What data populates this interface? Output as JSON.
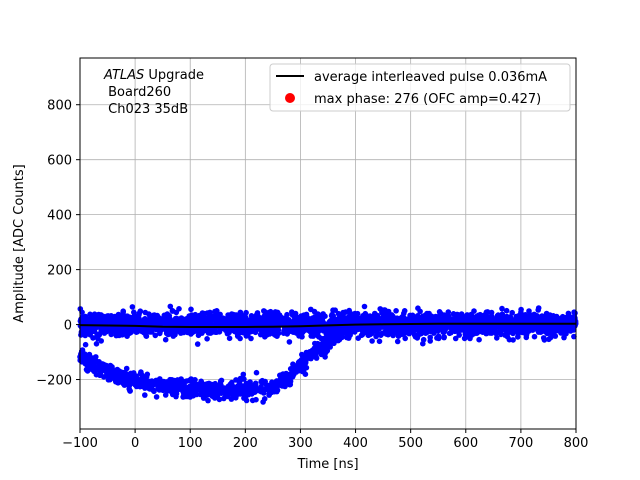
{
  "chart_data": {
    "type": "scatter",
    "title": "",
    "xlabel": "Time [ns]",
    "ylabel": "Amplitude [ADC Counts]",
    "xlim": [
      -100,
      800
    ],
    "ylim": [
      -380,
      970
    ],
    "xticks": [
      -100,
      0,
      100,
      200,
      300,
      400,
      500,
      600,
      700,
      800
    ],
    "yticks": [
      -200,
      0,
      200,
      400,
      600,
      800
    ],
    "grid": true,
    "legend_position": "top-right",
    "annotation": {
      "italic": "ATLAS",
      "line1_rest": " Upgrade",
      "line2": " Board260",
      "line3": " Ch023 35dB"
    },
    "series": [
      {
        "name": "average interleaved pulse 0.036mA",
        "kind": "line",
        "color": "#000000",
        "x": [
          -100,
          0,
          50,
          100,
          150,
          200,
          250,
          300,
          350,
          400,
          450,
          500,
          550,
          600,
          650,
          700,
          750,
          800
        ],
        "y": [
          -2,
          -5,
          -8,
          -9,
          -9,
          -9,
          -8,
          -6,
          -3,
          0,
          1,
          2,
          3,
          3,
          3,
          3,
          3,
          3
        ]
      },
      {
        "name": "max phase: 276 (OFC amp=0.427)",
        "kind": "points",
        "color": "#ff0000",
        "x": [],
        "y": []
      },
      {
        "name": "",
        "kind": "scatter",
        "color": "#0000ff",
        "band": {
          "x_start": -100,
          "x_end": 800,
          "center": 0,
          "spread": 30
        },
        "pulse": {
          "x": [
            -100,
            -75,
            -50,
            -25,
            0,
            25,
            50,
            75,
            100,
            125,
            150,
            175,
            200,
            225,
            250,
            275,
            300,
            325,
            350,
            375,
            400
          ],
          "y": [
            -110,
            -150,
            -175,
            -195,
            -205,
            -215,
            -225,
            -230,
            -235,
            -238,
            -240,
            -240,
            -238,
            -235,
            -230,
            -195,
            -150,
            -100,
            -60,
            -25,
            -5
          ]
        }
      }
    ]
  }
}
